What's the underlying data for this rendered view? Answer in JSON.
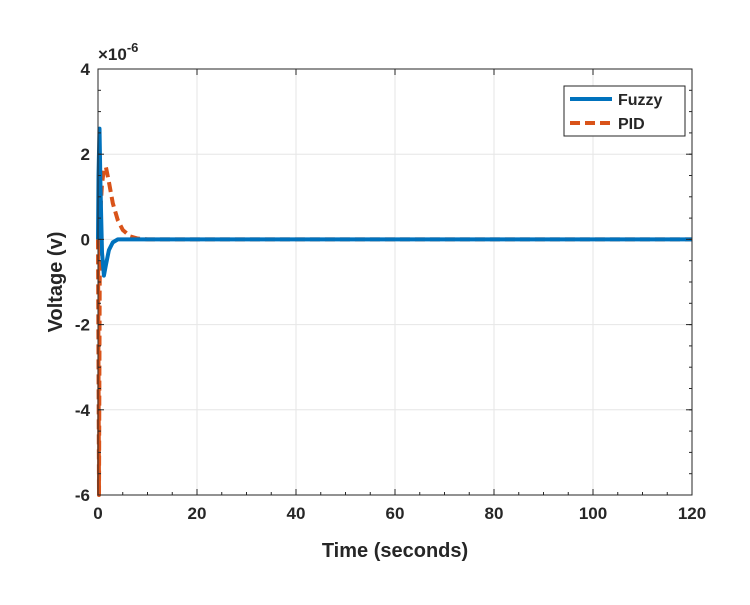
{
  "chart_data": {
    "type": "line",
    "title": "",
    "xlabel": "Time (seconds)",
    "ylabel": "Voltage (v)",
    "y_exponent": "×10",
    "y_exponent_power": "-6",
    "xlim": [
      0,
      120
    ],
    "ylim": [
      -6,
      4
    ],
    "xticks": [
      0,
      20,
      40,
      60,
      80,
      100,
      120
    ],
    "yticks": [
      -6,
      -4,
      -2,
      0,
      2,
      4
    ],
    "grid": true,
    "legend_position": "top-right",
    "series": [
      {
        "name": "Fuzzy",
        "color": "#0072BD",
        "style": "solid",
        "x": [
          0,
          0.1,
          0.3,
          0.5,
          0.8,
          1.2,
          1.6,
          2.2,
          3,
          4,
          6,
          120
        ],
        "y": [
          0,
          1.5,
          2.6,
          1.2,
          -0.3,
          -0.85,
          -0.6,
          -0.25,
          -0.07,
          0,
          0,
          0
        ]
      },
      {
        "name": "PID",
        "color": "#D95319",
        "style": "dashed",
        "x": [
          0,
          0.1,
          0.2,
          0.35,
          0.5,
          0.8,
          1.2,
          1.6,
          2.2,
          3,
          4,
          5,
          6.5,
          8,
          10,
          120
        ],
        "y": [
          0,
          -3,
          -6,
          -1,
          0.7,
          1.3,
          1.65,
          1.7,
          1.35,
          0.85,
          0.45,
          0.22,
          0.07,
          0.02,
          0,
          0
        ]
      }
    ]
  }
}
